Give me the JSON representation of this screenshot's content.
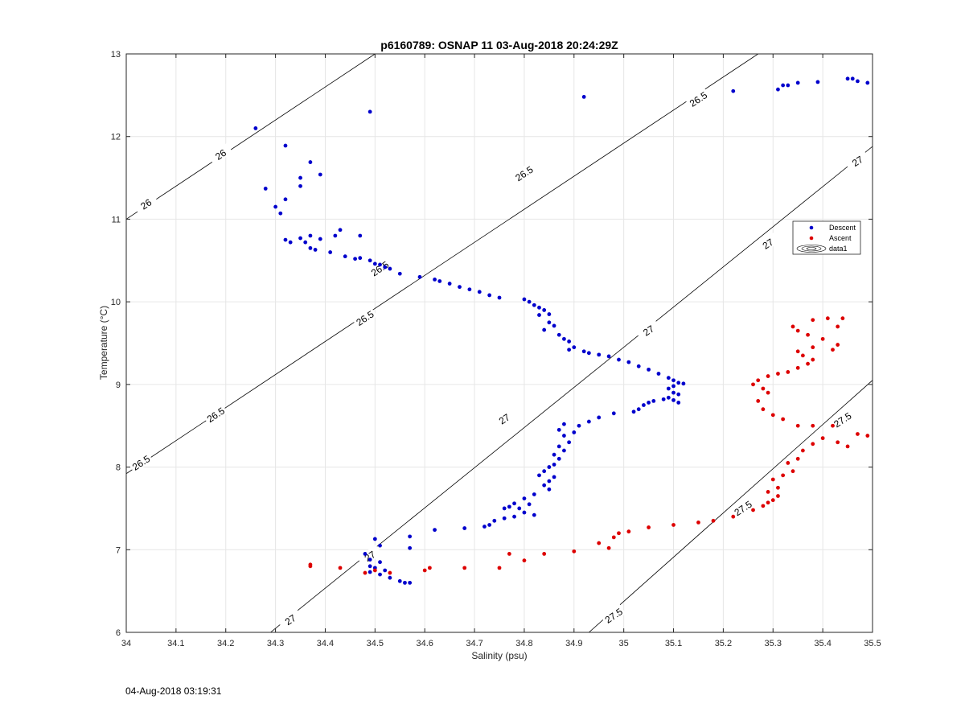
{
  "chart_data": {
    "type": "scatter",
    "title": "p6160789: OSNAP 11 03-Aug-2018 20:24:29Z",
    "xlabel": "Salinity (psu)",
    "ylabel": "Temperature (°C)",
    "xlim": [
      34,
      35.5
    ],
    "ylim": [
      6,
      13
    ],
    "xticks": [
      "34",
      "34.1",
      "34.2",
      "34.3",
      "34.4",
      "34.5",
      "34.6",
      "34.7",
      "34.8",
      "34.9",
      "35",
      "35.1",
      "35.2",
      "35.3",
      "35.4",
      "35.5"
    ],
    "yticks": [
      "6",
      "7",
      "8",
      "9",
      "10",
      "11",
      "12",
      "13"
    ],
    "grid": true,
    "legend": {
      "placement": "right",
      "entries": [
        "Descent",
        "Ascent",
        "data1"
      ]
    },
    "colors": {
      "descent": "#0000cc",
      "ascent": "#dd0000",
      "grid": "#e6e6e6",
      "contour": "#000000"
    },
    "contours": [
      {
        "level": "26",
        "slope": 4.0,
        "points": [
          [
            34.0,
            11.0
          ],
          [
            34.5,
            13.0
          ]
        ],
        "labels": [
          [
            34.04,
            11.18
          ],
          [
            34.19,
            11.78
          ]
        ]
      },
      {
        "level": "26.5",
        "slope": 4.0,
        "points": [
          [
            34.0,
            7.92
          ],
          [
            35.27,
            13.0
          ]
        ],
        "labels": [
          [
            34.03,
            8.05
          ],
          [
            34.18,
            8.63
          ],
          [
            34.48,
            9.8
          ],
          [
            34.51,
            10.4
          ],
          [
            34.8,
            11.55
          ],
          [
            35.15,
            12.45
          ]
        ]
      },
      {
        "level": "27",
        "slope": 4.0,
        "points": [
          [
            34.29,
            6.0
          ],
          [
            35.5,
            11.88
          ]
        ],
        "labels": [
          [
            34.33,
            6.15
          ],
          [
            34.49,
            6.92
          ],
          [
            34.76,
            8.58
          ],
          [
            35.05,
            9.65
          ],
          [
            35.29,
            10.7
          ],
          [
            35.47,
            11.7
          ]
        ]
      },
      {
        "level": "27.5",
        "slope": 4.0,
        "points": [
          [
            34.93,
            6.0
          ],
          [
            35.5,
            9.05
          ]
        ],
        "labels": [
          [
            34.98,
            6.2
          ],
          [
            35.24,
            7.5
          ],
          [
            35.44,
            8.57
          ]
        ]
      }
    ],
    "series": [
      {
        "name": "Descent",
        "points": [
          [
            34.26,
            12.1
          ],
          [
            34.49,
            12.3
          ],
          [
            34.92,
            12.48
          ],
          [
            35.22,
            12.55
          ],
          [
            35.31,
            12.57
          ],
          [
            35.32,
            12.62
          ],
          [
            35.33,
            12.62
          ],
          [
            35.35,
            12.65
          ],
          [
            35.39,
            12.66
          ],
          [
            35.45,
            12.7
          ],
          [
            35.46,
            12.7
          ],
          [
            35.47,
            12.67
          ],
          [
            35.49,
            12.65
          ],
          [
            34.32,
            11.89
          ],
          [
            34.37,
            11.69
          ],
          [
            34.39,
            11.54
          ],
          [
            34.35,
            11.5
          ],
          [
            34.35,
            11.4
          ],
          [
            34.32,
            11.24
          ],
          [
            34.28,
            11.37
          ],
          [
            34.3,
            11.15
          ],
          [
            34.31,
            11.07
          ],
          [
            34.32,
            10.75
          ],
          [
            34.33,
            10.72
          ],
          [
            34.35,
            10.77
          ],
          [
            34.36,
            10.72
          ],
          [
            34.37,
            10.8
          ],
          [
            34.37,
            10.65
          ],
          [
            34.38,
            10.63
          ],
          [
            34.39,
            10.76
          ],
          [
            34.42,
            10.8
          ],
          [
            34.43,
            10.87
          ],
          [
            34.41,
            10.6
          ],
          [
            34.44,
            10.55
          ],
          [
            34.46,
            10.52
          ],
          [
            34.47,
            10.8
          ],
          [
            34.47,
            10.53
          ],
          [
            34.49,
            10.5
          ],
          [
            34.5,
            10.46
          ],
          [
            34.51,
            10.45
          ],
          [
            34.52,
            10.42
          ],
          [
            34.53,
            10.4
          ],
          [
            34.55,
            10.34
          ],
          [
            34.59,
            10.3
          ],
          [
            34.62,
            10.27
          ],
          [
            34.63,
            10.25
          ],
          [
            34.65,
            10.22
          ],
          [
            34.67,
            10.18
          ],
          [
            34.69,
            10.15
          ],
          [
            34.71,
            10.12
          ],
          [
            34.73,
            10.08
          ],
          [
            34.75,
            10.05
          ],
          [
            34.8,
            10.03
          ],
          [
            34.81,
            10.0
          ],
          [
            34.82,
            9.96
          ],
          [
            34.83,
            9.93
          ],
          [
            34.84,
            9.9
          ],
          [
            34.85,
            9.85
          ],
          [
            34.83,
            9.84
          ],
          [
            34.85,
            9.75
          ],
          [
            34.86,
            9.71
          ],
          [
            34.84,
            9.66
          ],
          [
            34.87,
            9.6
          ],
          [
            34.88,
            9.55
          ],
          [
            34.89,
            9.52
          ],
          [
            34.9,
            9.45
          ],
          [
            34.89,
            9.42
          ],
          [
            34.92,
            9.4
          ],
          [
            34.93,
            9.38
          ],
          [
            34.95,
            9.36
          ],
          [
            34.97,
            9.34
          ],
          [
            34.99,
            9.3
          ],
          [
            35.01,
            9.27
          ],
          [
            35.03,
            9.22
          ],
          [
            35.05,
            9.18
          ],
          [
            35.07,
            9.13
          ],
          [
            35.09,
            9.08
          ],
          [
            35.1,
            9.05
          ],
          [
            35.11,
            9.02
          ],
          [
            35.12,
            9.01
          ],
          [
            35.1,
            8.98
          ],
          [
            35.09,
            8.95
          ],
          [
            35.1,
            8.9
          ],
          [
            35.11,
            8.88
          ],
          [
            35.09,
            8.84
          ],
          [
            35.1,
            8.81
          ],
          [
            35.11,
            8.78
          ],
          [
            35.08,
            8.82
          ],
          [
            35.06,
            8.8
          ],
          [
            35.05,
            8.78
          ],
          [
            35.04,
            8.75
          ],
          [
            35.03,
            8.7
          ],
          [
            35.02,
            8.67
          ],
          [
            34.98,
            8.65
          ],
          [
            34.95,
            8.6
          ],
          [
            34.93,
            8.55
          ],
          [
            34.91,
            8.5
          ],
          [
            34.88,
            8.52
          ],
          [
            34.87,
            8.45
          ],
          [
            34.9,
            8.42
          ],
          [
            34.88,
            8.38
          ],
          [
            34.89,
            8.3
          ],
          [
            34.87,
            8.25
          ],
          [
            34.88,
            8.2
          ],
          [
            34.86,
            8.15
          ],
          [
            34.87,
            8.1
          ],
          [
            34.86,
            8.03
          ],
          [
            34.85,
            8.0
          ],
          [
            34.84,
            7.95
          ],
          [
            34.83,
            7.9
          ],
          [
            34.86,
            7.88
          ],
          [
            34.85,
            7.83
          ],
          [
            34.84,
            7.78
          ],
          [
            34.85,
            7.73
          ],
          [
            34.82,
            7.67
          ],
          [
            34.8,
            7.62
          ],
          [
            34.81,
            7.55
          ],
          [
            34.79,
            7.5
          ],
          [
            34.78,
            7.56
          ],
          [
            34.77,
            7.52
          ],
          [
            34.76,
            7.5
          ],
          [
            34.8,
            7.45
          ],
          [
            34.82,
            7.42
          ],
          [
            34.78,
            7.4
          ],
          [
            34.76,
            7.38
          ],
          [
            34.74,
            7.35
          ],
          [
            34.73,
            7.3
          ],
          [
            34.72,
            7.28
          ],
          [
            34.68,
            7.26
          ],
          [
            34.62,
            7.24
          ],
          [
            34.57,
            7.16
          ],
          [
            34.5,
            7.13
          ],
          [
            34.51,
            7.05
          ],
          [
            34.57,
            7.02
          ],
          [
            34.48,
            6.95
          ],
          [
            34.49,
            6.88
          ],
          [
            34.51,
            6.85
          ],
          [
            34.49,
            6.8
          ],
          [
            34.5,
            6.78
          ],
          [
            34.52,
            6.75
          ],
          [
            34.49,
            6.73
          ],
          [
            34.51,
            6.7
          ],
          [
            34.53,
            6.66
          ],
          [
            34.55,
            6.62
          ],
          [
            34.56,
            6.6
          ],
          [
            34.57,
            6.6
          ]
        ]
      },
      {
        "name": "Ascent",
        "points": [
          [
            34.37,
            6.82
          ],
          [
            34.37,
            6.8
          ],
          [
            34.43,
            6.78
          ],
          [
            34.48,
            6.72
          ],
          [
            34.5,
            6.75
          ],
          [
            34.53,
            6.72
          ],
          [
            34.6,
            6.75
          ],
          [
            34.61,
            6.78
          ],
          [
            34.68,
            6.78
          ],
          [
            34.75,
            6.78
          ],
          [
            34.77,
            6.95
          ],
          [
            34.8,
            6.87
          ],
          [
            34.84,
            6.95
          ],
          [
            34.9,
            6.98
          ],
          [
            34.95,
            7.08
          ],
          [
            34.97,
            7.02
          ],
          [
            34.98,
            7.15
          ],
          [
            34.99,
            7.2
          ],
          [
            35.01,
            7.22
          ],
          [
            35.05,
            7.27
          ],
          [
            35.1,
            7.3
          ],
          [
            35.15,
            7.33
          ],
          [
            35.18,
            7.35
          ],
          [
            35.22,
            7.4
          ],
          [
            35.26,
            7.48
          ],
          [
            35.28,
            7.53
          ],
          [
            35.29,
            7.57
          ],
          [
            35.3,
            7.6
          ],
          [
            35.31,
            7.65
          ],
          [
            35.29,
            7.7
          ],
          [
            35.31,
            7.75
          ],
          [
            35.3,
            7.85
          ],
          [
            35.32,
            7.9
          ],
          [
            35.34,
            7.95
          ],
          [
            35.33,
            8.05
          ],
          [
            35.35,
            8.1
          ],
          [
            35.36,
            8.2
          ],
          [
            35.38,
            8.28
          ],
          [
            35.4,
            8.35
          ],
          [
            35.43,
            8.3
          ],
          [
            35.45,
            8.25
          ],
          [
            35.47,
            8.4
          ],
          [
            35.49,
            8.38
          ],
          [
            35.42,
            8.5
          ],
          [
            35.38,
            8.5
          ],
          [
            35.35,
            8.5
          ],
          [
            35.32,
            8.58
          ],
          [
            35.3,
            8.63
          ],
          [
            35.28,
            8.7
          ],
          [
            35.27,
            8.8
          ],
          [
            35.29,
            8.9
          ],
          [
            35.28,
            8.95
          ],
          [
            35.26,
            9.0
          ],
          [
            35.27,
            9.05
          ],
          [
            35.29,
            9.1
          ],
          [
            35.31,
            9.13
          ],
          [
            35.33,
            9.15
          ],
          [
            35.35,
            9.2
          ],
          [
            35.37,
            9.25
          ],
          [
            35.38,
            9.3
          ],
          [
            35.36,
            9.35
          ],
          [
            35.35,
            9.4
          ],
          [
            35.38,
            9.45
          ],
          [
            35.42,
            9.42
          ],
          [
            35.43,
            9.48
          ],
          [
            35.4,
            9.55
          ],
          [
            35.37,
            9.6
          ],
          [
            35.35,
            9.65
          ],
          [
            35.34,
            9.7
          ],
          [
            35.38,
            9.78
          ],
          [
            35.41,
            9.8
          ],
          [
            35.43,
            9.7
          ],
          [
            35.44,
            9.8
          ]
        ]
      }
    ]
  },
  "footer": {
    "timestamp": "04-Aug-2018 03:19:31"
  }
}
